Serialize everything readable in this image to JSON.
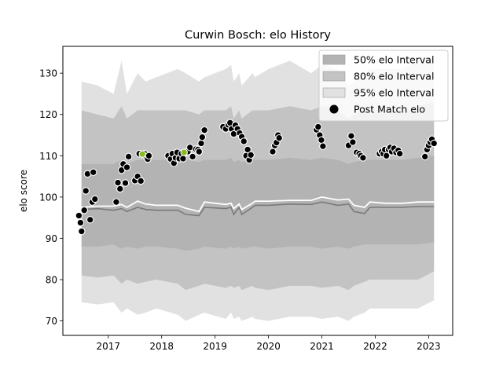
{
  "chart_data": {
    "type": "line",
    "title": "Curwin Bosch: elo History",
    "xlabel": "",
    "ylabel": "elo score",
    "xlim": [
      2016.15,
      2023.45
    ],
    "ylim": [
      66.5,
      136.5
    ],
    "x_ticks": [
      2017,
      2018,
      2019,
      2020,
      2021,
      2022,
      2023
    ],
    "x_tick_labels": [
      "2017",
      "2018",
      "2019",
      "2020",
      "2021",
      "2022",
      "2023"
    ],
    "y_ticks": [
      70,
      80,
      90,
      100,
      110,
      120,
      130
    ],
    "y_tick_labels": [
      "70",
      "80",
      "90",
      "100",
      "110",
      "120",
      "130"
    ],
    "grid": false,
    "legend_position": "top-right",
    "legend": [
      {
        "label": "50% elo Interval",
        "kind": "band",
        "color": "#b3b3b3"
      },
      {
        "label": "80% elo Interval",
        "kind": "band",
        "color": "#c3c3c3"
      },
      {
        "label": "95% elo Interval",
        "kind": "band",
        "color": "#e1e1e1"
      },
      {
        "label": "Post Match elo",
        "kind": "marker",
        "color": "#000000"
      }
    ],
    "colors": {
      "band50": "#b3b3b3",
      "band80": "#c3c3c3",
      "band95": "#e1e1e1",
      "mean_line": "#ffffff",
      "median_line": "#7a7a7a",
      "highlight_fill": "#88bb22"
    },
    "bands_x": [
      2016.5,
      2016.8,
      2017.1,
      2017.25,
      2017.35,
      2017.55,
      2017.7,
      2017.9,
      2018.3,
      2018.45,
      2018.7,
      2018.8,
      2019.2,
      2019.3,
      2019.35,
      2019.45,
      2019.5,
      2019.7,
      2019.75,
      2020.0,
      2020.4,
      2020.8,
      2021.0,
      2021.3,
      2021.5,
      2021.6,
      2021.8,
      2021.9,
      2022.2,
      2022.5,
      2022.8,
      2023.1
    ],
    "band95_upper": [
      128,
      127,
      125,
      133,
      125,
      130,
      128,
      129,
      131,
      130,
      128,
      129,
      131,
      132,
      128,
      130,
      127,
      130,
      129,
      131,
      133,
      130,
      132,
      131,
      127,
      128,
      130,
      131,
      131,
      131,
      133,
      134
    ],
    "band95_lower": [
      74.5,
      74,
      74.5,
      72,
      73,
      71.5,
      72,
      73,
      71.5,
      70,
      71.5,
      72,
      70.5,
      72,
      70.5,
      71,
      70,
      71,
      70.5,
      70,
      71,
      71,
      70.5,
      71,
      70,
      71,
      72,
      73,
      73,
      73,
      73,
      75
    ],
    "band80_upper": [
      121,
      120,
      119,
      122,
      119,
      121,
      121,
      121,
      121,
      121,
      120,
      121,
      121,
      122,
      119,
      121,
      119,
      121,
      121,
      121,
      122,
      121,
      122,
      121,
      119,
      120,
      121,
      121,
      121,
      121,
      122,
      123
    ],
    "band80_lower": [
      81,
      80.5,
      81,
      79,
      80,
      79,
      79.5,
      80,
      79,
      77.5,
      78.5,
      79,
      78,
      78.5,
      78,
      78.5,
      77.5,
      78.5,
      78,
      77.5,
      78.5,
      78.5,
      78,
      78.5,
      77.5,
      78.5,
      79.5,
      80,
      80,
      80,
      80,
      82
    ],
    "band50_upper": [
      108,
      108,
      108,
      109,
      108,
      109,
      109,
      109,
      109,
      109,
      108.5,
      109,
      109,
      109.5,
      108.5,
      109,
      108.5,
      109,
      109,
      109,
      109.5,
      109,
      109.5,
      109,
      108,
      108.5,
      109,
      109,
      109,
      109,
      109.5,
      110
    ],
    "band50_lower": [
      88,
      88,
      88.5,
      87.5,
      88,
      87.5,
      88,
      88,
      87.5,
      87,
      87.5,
      88,
      87.5,
      88,
      87.5,
      88,
      87.5,
      88,
      88,
      87.5,
      88,
      88,
      87.5,
      88,
      87.5,
      88,
      88.5,
      88.5,
      88.5,
      88.5,
      88.5,
      89
    ],
    "mean_line": [
      97.5,
      97.8,
      97.8,
      98.2,
      97.5,
      99.0,
      98.3,
      98.0,
      98.0,
      97.3,
      96.5,
      98.8,
      98.2,
      98.5,
      97.2,
      98.3,
      97.0,
      98.5,
      99.0,
      99.0,
      99.2,
      99.2,
      100.0,
      99.3,
      99.5,
      98.0,
      97.5,
      98.8,
      98.5,
      98.5,
      98.8,
      98.8
    ],
    "median_line": [
      97.0,
      97.2,
      96.8,
      97.2,
      96.5,
      97.5,
      97.0,
      96.8,
      96.8,
      95.8,
      95.5,
      97.5,
      97.2,
      97.5,
      95.8,
      97.5,
      95.8,
      97.5,
      98.0,
      98.0,
      98.3,
      98.2,
      98.8,
      98.0,
      98.3,
      96.5,
      96.0,
      97.5,
      97.5,
      97.5,
      97.7,
      97.7
    ],
    "post_match_points": [
      {
        "x": 2016.45,
        "y": 95.5
      },
      {
        "x": 2016.48,
        "y": 93.8
      },
      {
        "x": 2016.5,
        "y": 91.7
      },
      {
        "x": 2016.55,
        "y": 96.8
      },
      {
        "x": 2016.58,
        "y": 101.5
      },
      {
        "x": 2016.61,
        "y": 105.6
      },
      {
        "x": 2016.66,
        "y": 94.5
      },
      {
        "x": 2016.7,
        "y": 98.8
      },
      {
        "x": 2016.72,
        "y": 106.0
      },
      {
        "x": 2016.75,
        "y": 99.5
      },
      {
        "x": 2017.15,
        "y": 98.8
      },
      {
        "x": 2017.18,
        "y": 103.5
      },
      {
        "x": 2017.22,
        "y": 102.0
      },
      {
        "x": 2017.25,
        "y": 106.5
      },
      {
        "x": 2017.28,
        "y": 108.0
      },
      {
        "x": 2017.32,
        "y": 103.4
      },
      {
        "x": 2017.35,
        "y": 107.2
      },
      {
        "x": 2017.38,
        "y": 109.8
      },
      {
        "x": 2017.5,
        "y": 104.0
      },
      {
        "x": 2017.55,
        "y": 105.0
      },
      {
        "x": 2017.58,
        "y": 110.5
      },
      {
        "x": 2017.61,
        "y": 103.9
      },
      {
        "x": 2017.68,
        "y": 110.5
      },
      {
        "x": 2017.71,
        "y": 109.8
      },
      {
        "x": 2017.74,
        "y": 109.2
      },
      {
        "x": 2017.76,
        "y": 110.0
      },
      {
        "x": 2018.12,
        "y": 110.0
      },
      {
        "x": 2018.17,
        "y": 109.2
      },
      {
        "x": 2018.2,
        "y": 110.5
      },
      {
        "x": 2018.23,
        "y": 108.2
      },
      {
        "x": 2018.26,
        "y": 109.5
      },
      {
        "x": 2018.29,
        "y": 110.8
      },
      {
        "x": 2018.33,
        "y": 109.3
      },
      {
        "x": 2018.37,
        "y": 110.5
      },
      {
        "x": 2018.4,
        "y": 109.3
      },
      {
        "x": 2018.45,
        "y": 110.8
      },
      {
        "x": 2018.49,
        "y": 111.0
      },
      {
        "x": 2018.53,
        "y": 112.0
      },
      {
        "x": 2018.58,
        "y": 109.8
      },
      {
        "x": 2018.64,
        "y": 111.6
      },
      {
        "x": 2018.68,
        "y": 111.5
      },
      {
        "x": 2018.7,
        "y": 111.0
      },
      {
        "x": 2018.74,
        "y": 113.0
      },
      {
        "x": 2018.76,
        "y": 114.5
      },
      {
        "x": 2018.8,
        "y": 116.2
      },
      {
        "x": 2019.15,
        "y": 117.0
      },
      {
        "x": 2019.2,
        "y": 116.5
      },
      {
        "x": 2019.25,
        "y": 117.5
      },
      {
        "x": 2019.28,
        "y": 118.0
      },
      {
        "x": 2019.31,
        "y": 116.5
      },
      {
        "x": 2019.35,
        "y": 115.3
      },
      {
        "x": 2019.38,
        "y": 117.4
      },
      {
        "x": 2019.42,
        "y": 116.5
      },
      {
        "x": 2019.46,
        "y": 115.5
      },
      {
        "x": 2019.5,
        "y": 114.6
      },
      {
        "x": 2019.54,
        "y": 113.5
      },
      {
        "x": 2019.58,
        "y": 110.0
      },
      {
        "x": 2019.61,
        "y": 111.5
      },
      {
        "x": 2019.64,
        "y": 109.0
      },
      {
        "x": 2019.67,
        "y": 110.2
      },
      {
        "x": 2020.08,
        "y": 111.0
      },
      {
        "x": 2020.12,
        "y": 112.5
      },
      {
        "x": 2020.15,
        "y": 113.2
      },
      {
        "x": 2020.18,
        "y": 115.0
      },
      {
        "x": 2020.2,
        "y": 114.3
      },
      {
        "x": 2020.9,
        "y": 116.3
      },
      {
        "x": 2020.93,
        "y": 117.0
      },
      {
        "x": 2020.96,
        "y": 115.0
      },
      {
        "x": 2020.99,
        "y": 113.8
      },
      {
        "x": 2021.02,
        "y": 112.3
      },
      {
        "x": 2021.5,
        "y": 112.5
      },
      {
        "x": 2021.55,
        "y": 114.8
      },
      {
        "x": 2021.58,
        "y": 113.3
      },
      {
        "x": 2021.65,
        "y": 110.8
      },
      {
        "x": 2021.7,
        "y": 110.5
      },
      {
        "x": 2021.73,
        "y": 110.0
      },
      {
        "x": 2021.77,
        "y": 109.5
      },
      {
        "x": 2022.08,
        "y": 110.5
      },
      {
        "x": 2022.12,
        "y": 111.0
      },
      {
        "x": 2022.15,
        "y": 110.5
      },
      {
        "x": 2022.18,
        "y": 111.5
      },
      {
        "x": 2022.21,
        "y": 110.0
      },
      {
        "x": 2022.25,
        "y": 111.5
      },
      {
        "x": 2022.28,
        "y": 112.0
      },
      {
        "x": 2022.31,
        "y": 111.0
      },
      {
        "x": 2022.35,
        "y": 111.8
      },
      {
        "x": 2022.39,
        "y": 110.8
      },
      {
        "x": 2022.43,
        "y": 111.3
      },
      {
        "x": 2022.46,
        "y": 110.5
      },
      {
        "x": 2022.93,
        "y": 109.8
      },
      {
        "x": 2022.97,
        "y": 111.5
      },
      {
        "x": 2023.0,
        "y": 112.5
      },
      {
        "x": 2023.03,
        "y": 113.3
      },
      {
        "x": 2023.06,
        "y": 114.0
      },
      {
        "x": 2023.1,
        "y": 113.0
      }
    ],
    "highlight_points": [
      {
        "x": 2017.64,
        "y": 110.4
      },
      {
        "x": 2018.42,
        "y": 110.8
      }
    ]
  }
}
